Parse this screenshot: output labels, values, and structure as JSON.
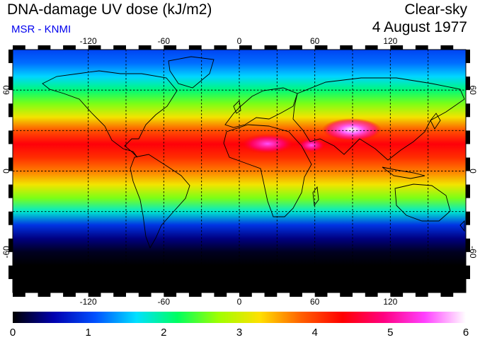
{
  "header": {
    "title": "DNA-damage UV dose (kJ/m2)",
    "subtitle": "MSR - KNMI",
    "condition": "Clear-sky",
    "date": "4 August 1977"
  },
  "map": {
    "projection": "equirectangular",
    "lon_range": [
      -180,
      180
    ],
    "lat_range": [
      -90,
      90
    ],
    "top_ticks": [
      "-120",
      "-60",
      "0",
      "60",
      "120"
    ],
    "bottom_ticks": [
      "-120",
      "-60",
      "0",
      "60",
      "120"
    ],
    "left_ticks": [
      "60",
      "0",
      "-60"
    ],
    "right_ticks": [
      "60",
      "0",
      "-60"
    ],
    "grid_lons": [
      -120,
      -90,
      -60,
      -30,
      0,
      30,
      60,
      90,
      120,
      150
    ],
    "grid_lats": [
      -30,
      0,
      30,
      60
    ],
    "grid": true
  },
  "colorbar": {
    "min": 0,
    "max": 6,
    "tick_labels": [
      "0",
      "1",
      "2",
      "3",
      "4",
      "5",
      "6"
    ],
    "colors": [
      "#000000",
      "#0000b0",
      "#0050ff",
      "#00e0ff",
      "#00ff60",
      "#a0ff00",
      "#ffe000",
      "#ff6000",
      "#ff0000",
      "#ff0080",
      "#ff40ff",
      "#ffffff"
    ]
  },
  "field_profile": {
    "lat": [
      90,
      80,
      70,
      60,
      50,
      40,
      30,
      20,
      10,
      0,
      -10,
      -20,
      -30,
      -40,
      -50,
      -60,
      -70,
      -90
    ],
    "dose": [
      1.0,
      1.2,
      1.6,
      2.1,
      2.6,
      3.2,
      3.9,
      4.4,
      4.1,
      3.7,
      3.2,
      2.6,
      1.8,
      0.9,
      0.4,
      0.1,
      0.0,
      0.0
    ]
  }
}
